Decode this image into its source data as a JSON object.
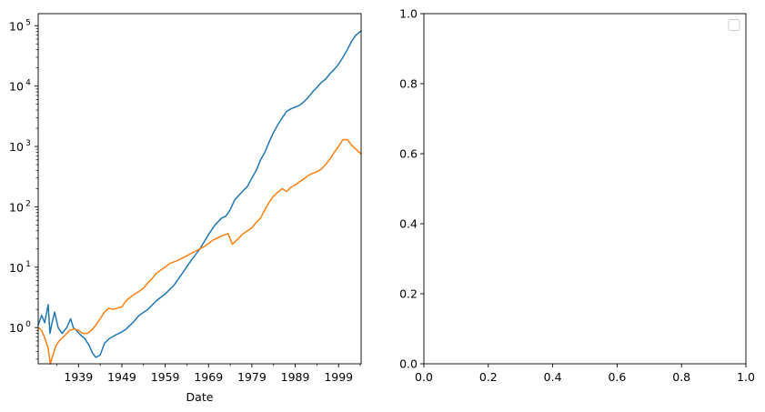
{
  "chart_data": [
    {
      "type": "line",
      "xlabel": "Date",
      "ylabel": "",
      "yscale": "log",
      "xlim": [
        1929.7,
        2004.2
      ],
      "ylim_exponent": [
        -0.6,
        5.2
      ],
      "x_ticks": [
        "1939",
        "1949",
        "1959",
        "1969",
        "1979",
        "1989",
        "1999"
      ],
      "x_tick_values": [
        1939,
        1949,
        1959,
        1969,
        1979,
        1989,
        1999
      ],
      "y_ticks": [
        "10",
        "10",
        "10",
        "10",
        "10",
        "10"
      ],
      "y_tick_exponents": [
        "0",
        "1",
        "2",
        "3",
        "4",
        "5"
      ],
      "grid": false,
      "series": [
        {
          "color": "#1f77b4",
          "x": [
            1929.7,
            1930.5,
            1931.2,
            1932.0,
            1932.4,
            1932.9,
            1933.5,
            1934.3,
            1935.2,
            1936.3,
            1937.2,
            1937.8,
            1938.5,
            1939.5,
            1940.5,
            1941.5,
            1942.2,
            1943.0,
            1944.0,
            1945.0,
            1946.0,
            1947.5,
            1949.0,
            1950.0,
            1951.5,
            1953.0,
            1955.0,
            1957.0,
            1959.0,
            1961.0,
            1963.0,
            1965.0,
            1967.0,
            1969.0,
            1970.5,
            1972.0,
            1973.0,
            1974.0,
            1975.0,
            1976.5,
            1978.0,
            1979.0,
            1980.0,
            1981.0,
            1982.0,
            1983.0,
            1984.0,
            1985.0,
            1986.0,
            1987.0,
            1988.0,
            1989.0,
            1990.0,
            1991.0,
            1992.0,
            1993.0,
            1994.0,
            1995.0,
            1996.0,
            1997.0,
            1998.0,
            1999.0,
            2000.0,
            2001.0,
            2002.0,
            2003.0,
            2004.2
          ],
          "values": [
            1.1,
            1.6,
            1.2,
            2.4,
            0.8,
            1.2,
            1.8,
            1.0,
            0.8,
            1.0,
            1.4,
            1.0,
            0.9,
            0.75,
            0.65,
            0.5,
            0.38,
            0.32,
            0.35,
            0.55,
            0.65,
            0.75,
            0.85,
            0.95,
            1.2,
            1.6,
            2.0,
            2.8,
            3.6,
            5.0,
            8.0,
            13.0,
            20.0,
            35.0,
            50.0,
            65.0,
            70.0,
            90.0,
            130.0,
            170.0,
            220.0,
            300.0,
            400.0,
            600.0,
            800.0,
            1200.0,
            1700.0,
            2300.0,
            3000.0,
            3800.0,
            4200.0,
            4500.0,
            4800.0,
            5500.0,
            6500.0,
            8000.0,
            9500.0,
            11500.0,
            13000.0,
            16000.0,
            19000.0,
            23000.0,
            30000.0,
            40000.0,
            55000.0,
            70000.0,
            82000.0
          ]
        },
        {
          "color": "#ff7f0e",
          "x": [
            1929.7,
            1930.5,
            1931.3,
            1932.0,
            1932.5,
            1933.1,
            1933.8,
            1934.5,
            1935.5,
            1936.3,
            1937.0,
            1938.0,
            1939.0,
            1940.0,
            1941.0,
            1942.0,
            1943.0,
            1944.0,
            1945.0,
            1946.0,
            1947.0,
            1948.0,
            1949.0,
            1950.0,
            1951.0,
            1952.0,
            1953.0,
            1954.0,
            1955.0,
            1956.0,
            1957.0,
            1958.0,
            1959.0,
            1960.0,
            1962.0,
            1964.0,
            1966.0,
            1968.0,
            1970.0,
            1972.0,
            1973.5,
            1974.5,
            1975.5,
            1977.0,
            1979.0,
            1980.0,
            1981.0,
            1982.0,
            1983.0,
            1984.0,
            1985.0,
            1986.0,
            1987.0,
            1988.0,
            1989.0,
            1990.0,
            1991.0,
            1992.0,
            1993.0,
            1994.0,
            1995.0,
            1996.0,
            1997.0,
            1998.0,
            1999.0,
            2000.0,
            2001.0,
            2002.0,
            2003.0,
            2004.2
          ],
          "values": [
            1.0,
            0.9,
            0.65,
            0.45,
            0.25,
            0.35,
            0.5,
            0.6,
            0.7,
            0.8,
            0.9,
            0.95,
            0.9,
            0.8,
            0.8,
            0.9,
            1.1,
            1.4,
            1.8,
            2.1,
            2.0,
            2.1,
            2.2,
            2.8,
            3.2,
            3.6,
            4.0,
            4.5,
            5.5,
            6.5,
            8.0,
            9.0,
            10.0,
            11.5,
            13.0,
            15.5,
            18.5,
            22.0,
            28.0,
            33.0,
            36.0,
            24.0,
            28.0,
            36.0,
            45.0,
            55.0,
            65.0,
            90.0,
            120.0,
            150.0,
            175.0,
            200.0,
            180.0,
            210.0,
            230.0,
            260.0,
            290.0,
            330.0,
            360.0,
            380.0,
            420.0,
            500.0,
            620.0,
            800.0,
            1000.0,
            1300.0,
            1300.0,
            1050.0,
            900.0,
            750.0
          ]
        }
      ]
    },
    {
      "type": "line",
      "xlabel": "",
      "ylabel": "",
      "xlim": [
        0.0,
        1.0
      ],
      "ylim": [
        0.0,
        1.0
      ],
      "x_ticks": [
        "0.0",
        "0.2",
        "0.4",
        "0.6",
        "0.8",
        "1.0"
      ],
      "y_ticks": [
        "0.0",
        "0.2",
        "0.4",
        "0.6",
        "0.8",
        "1.0"
      ],
      "grid": false,
      "legend": "upper-right",
      "legend_entries": [],
      "series": []
    }
  ]
}
